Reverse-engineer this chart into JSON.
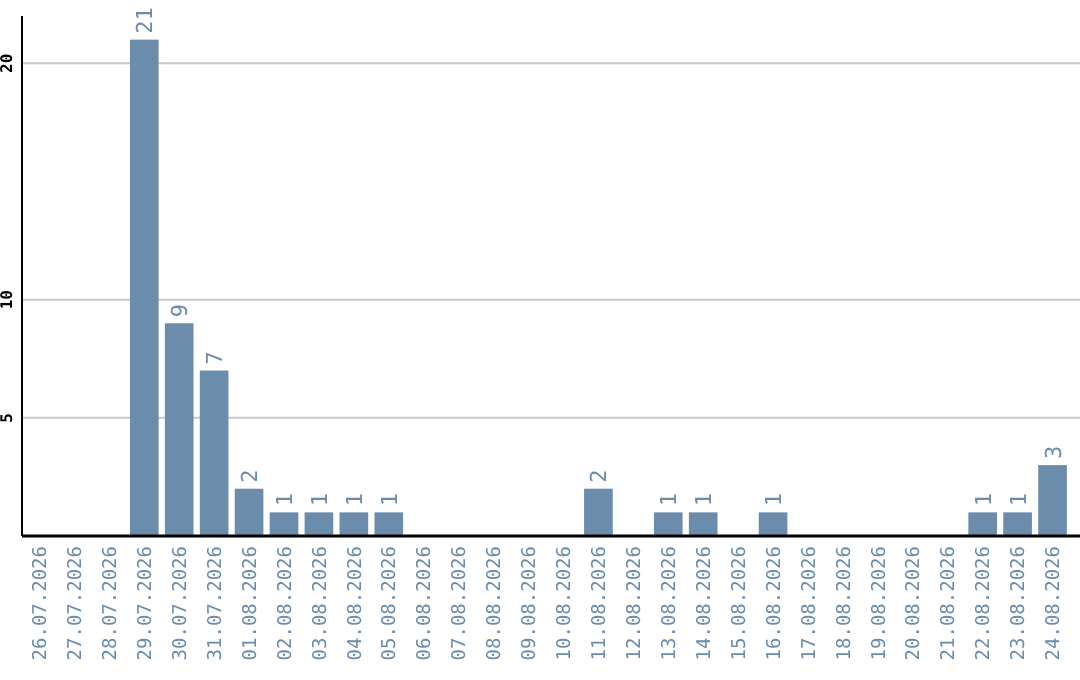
{
  "chart_data": {
    "type": "bar",
    "categories": [
      "26.07.2026",
      "27.07.2026",
      "28.07.2026",
      "29.07.2026",
      "30.07.2026",
      "31.07.2026",
      "01.08.2026",
      "02.08.2026",
      "03.08.2026",
      "04.08.2026",
      "05.08.2026",
      "06.08.2026",
      "07.08.2026",
      "08.08.2026",
      "09.08.2026",
      "10.08.2026",
      "11.08.2026",
      "12.08.2026",
      "13.08.2026",
      "14.08.2026",
      "15.08.2026",
      "16.08.2026",
      "17.08.2026",
      "18.08.2026",
      "19.08.2026",
      "20.08.2026",
      "21.08.2026",
      "22.08.2026",
      "23.08.2026",
      "24.08.2026"
    ],
    "values": [
      0,
      0,
      0,
      21,
      9,
      7,
      2,
      1,
      1,
      1,
      1,
      0,
      0,
      0,
      0,
      0,
      2,
      0,
      1,
      1,
      0,
      1,
      0,
      0,
      0,
      0,
      0,
      1,
      1,
      3
    ],
    "value_labels": [
      null,
      null,
      null,
      "21",
      "9",
      "7",
      "2",
      "1",
      "1",
      "1",
      "1",
      null,
      null,
      null,
      null,
      null,
      "2",
      null,
      "1",
      "1",
      null,
      "1",
      null,
      null,
      null,
      null,
      null,
      "1",
      "1",
      "3"
    ],
    "color": "#6b8cab",
    "ylim": [
      0,
      22
    ],
    "yticks": [
      5,
      10,
      20
    ],
    "grid": "y"
  }
}
